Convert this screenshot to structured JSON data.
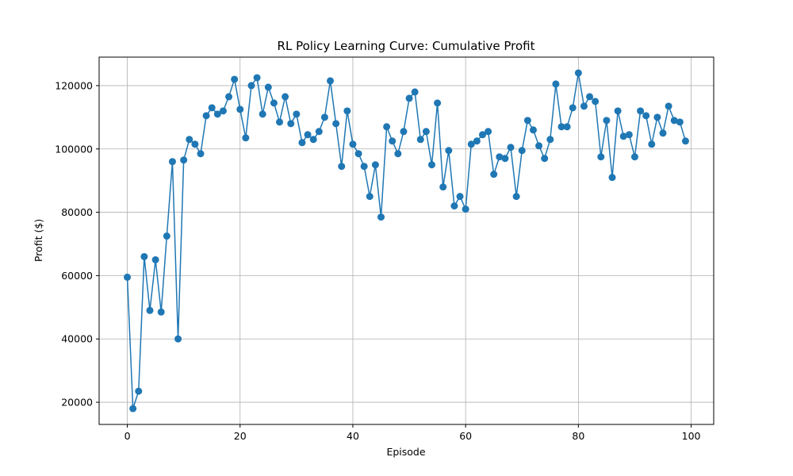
{
  "chart_data": {
    "type": "line",
    "title": "RL Policy Learning Curve: Cumulative Profit",
    "xlabel": "Episode",
    "ylabel": "Profit ($)",
    "xlim": [
      -5,
      104
    ],
    "ylim": [
      13000,
      129000
    ],
    "xticks": [
      0,
      20,
      40,
      60,
      80,
      100
    ],
    "yticks": [
      20000,
      40000,
      60000,
      80000,
      100000,
      120000
    ],
    "grid": true,
    "markers": "circle",
    "color": "#1f77b4",
    "series": [
      {
        "x": [
          0,
          1,
          2,
          3,
          4,
          5,
          6,
          7,
          8,
          9,
          10,
          11,
          12,
          13,
          14,
          15,
          16,
          17,
          18,
          19,
          20,
          21,
          22,
          23,
          24,
          25,
          26,
          27,
          28,
          29,
          30,
          31,
          32,
          33,
          34,
          35,
          36,
          37,
          38,
          39,
          40,
          41,
          42,
          43,
          44,
          45,
          46,
          47,
          48,
          49,
          50,
          51,
          52,
          53,
          54,
          55,
          56,
          57,
          58,
          59,
          60,
          61,
          62,
          63,
          64,
          65,
          66,
          67,
          68,
          69,
          70,
          71,
          72,
          73,
          74,
          75,
          76,
          77,
          78,
          79,
          80,
          81,
          82,
          83,
          84,
          85,
          86,
          87,
          88,
          89,
          90,
          91,
          92,
          93,
          94,
          95,
          96,
          97,
          98,
          99
        ],
        "values": [
          59500,
          18000,
          23500,
          66000,
          49000,
          65000,
          48500,
          72500,
          96000,
          40000,
          96500,
          103000,
          101500,
          98500,
          110500,
          113000,
          111000,
          112000,
          116500,
          122000,
          112500,
          103500,
          120000,
          122500,
          111000,
          119500,
          114500,
          108500,
          116500,
          108000,
          111000,
          102000,
          104500,
          103000,
          105500,
          110000,
          121500,
          108000,
          94500,
          112000,
          101500,
          98500,
          94500,
          85000,
          95000,
          78500,
          107000,
          102500,
          98500,
          105500,
          116000,
          118000,
          103000,
          105500,
          95000,
          114500,
          88000,
          99500,
          82000,
          85000,
          81000,
          101500,
          102500,
          104500,
          105500,
          92000,
          97500,
          97000,
          100500,
          85000,
          99500,
          109000,
          106000,
          101000,
          97000,
          103000,
          120500,
          107000,
          107000,
          113000,
          124000,
          113500,
          116500,
          115000,
          97500,
          109000,
          91000,
          112000,
          104000,
          104500,
          97500,
          112000,
          110500,
          101500,
          110000,
          105000,
          113500,
          109000,
          108500,
          102500
        ]
      }
    ]
  }
}
